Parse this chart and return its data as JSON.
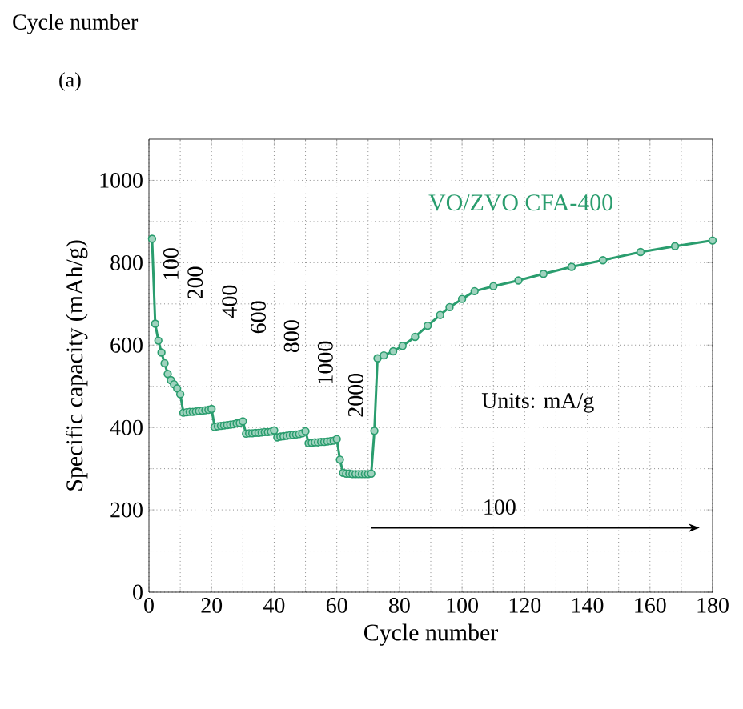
{
  "chart_data": {
    "type": "line",
    "title": "(a)",
    "xlabel": "Cycle number",
    "ylabel": "Specific capacity (mAh/g)",
    "xlim": [
      0,
      180
    ],
    "xticks": [
      0,
      20,
      40,
      60,
      80,
      100,
      120,
      140,
      160,
      180
    ],
    "ylim": [
      0,
      1100
    ],
    "yticks": [
      0,
      200,
      400,
      600,
      800,
      1000
    ],
    "grid": true,
    "marker": "circle",
    "line_style": "solid",
    "series": [
      {
        "name": "VO/ZVO CFA-400",
        "color": "#2a9d6e",
        "x": [
          1,
          2,
          3,
          4,
          5,
          6,
          7,
          8,
          9,
          10,
          11,
          12,
          13,
          14,
          15,
          16,
          17,
          18,
          19,
          20,
          21,
          22,
          23,
          24,
          25,
          26,
          27,
          28,
          29,
          30,
          31,
          32,
          33,
          34,
          35,
          36,
          37,
          38,
          39,
          40,
          41,
          42,
          43,
          44,
          45,
          46,
          47,
          48,
          49,
          50,
          51,
          52,
          53,
          54,
          55,
          56,
          57,
          58,
          59,
          60,
          61,
          62,
          63,
          64,
          65,
          66,
          67,
          68,
          69,
          70,
          71,
          72,
          73,
          75,
          78,
          81,
          85,
          89,
          93,
          96,
          100,
          104,
          110,
          118,
          126,
          135,
          145,
          157,
          168,
          180
        ],
        "values": [
          858,
          652,
          611,
          582,
          556,
          530,
          515,
          505,
          495,
          481,
          436,
          437,
          438,
          438,
          439,
          440,
          441,
          442,
          443,
          445,
          401,
          403,
          404,
          405,
          406,
          407,
          408,
          410,
          411,
          415,
          385,
          386,
          386,
          387,
          387,
          388,
          389,
          389,
          390,
          393,
          376,
          378,
          379,
          380,
          381,
          382,
          383,
          384,
          386,
          391,
          362,
          363,
          364,
          364,
          365,
          365,
          366,
          367,
          368,
          372,
          322,
          290,
          288,
          288,
          287,
          287,
          287,
          287,
          287,
          287,
          288,
          392,
          568,
          575,
          585,
          598,
          620,
          647,
          673,
          692,
          712,
          731,
          743,
          757,
          773,
          790,
          806,
          826,
          840,
          854
        ]
      }
    ],
    "annotations": [
      "100",
      "200",
      "400",
      "600",
      "800",
      "1000",
      "2000",
      "100",
      "Units: mA/g",
      "Cycle number"
    ]
  }
}
